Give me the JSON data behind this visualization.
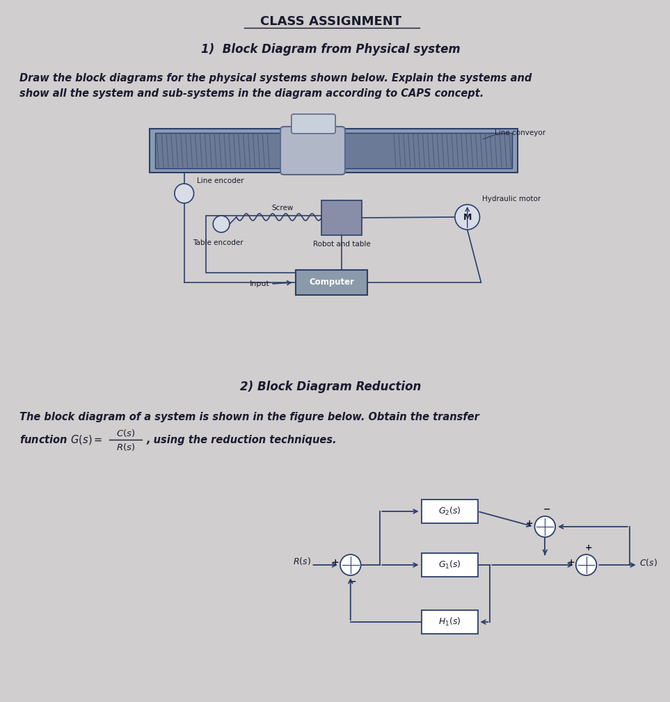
{
  "title": "CLASS ASSIGNMENT",
  "section1_title": "1)  Block Diagram from Physical system",
  "section1_body1": "Draw the block diagrams for the physical systems shown below. Explain the systems and",
  "section1_body2": "show all the system and sub-systems in the diagram according to CAPS concept.",
  "section2_title": "2) Block Diagram Reduction",
  "section2_body1": "The block diagram of a system is shown in the figure below. Obtain the transfer",
  "bg_color": "#d0cece",
  "text_color": "#1a1a2e",
  "block_edge": "#2c3e6b",
  "line_color": "#2c3e6b",
  "conv_color": "#8a9bb5",
  "conv_inner": "#6b7a96",
  "car_color": "#b0b8c8",
  "comp_color": "#8a9aaa",
  "hatch_color": "#4a5a7a"
}
